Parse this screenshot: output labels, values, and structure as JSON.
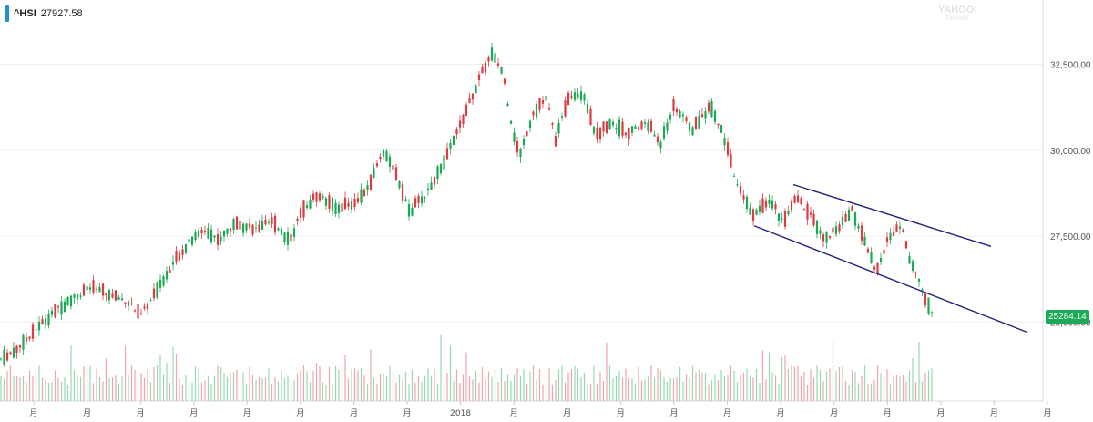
{
  "ticker": {
    "symbol": "^HSI",
    "value": "27927.58",
    "accent": "#1f8fd6"
  },
  "watermark": {
    "brand": "YAHOO!",
    "sub": "FINANCE"
  },
  "price_tag": {
    "value": "25284.14",
    "color": "#1aaa55"
  },
  "colors": {
    "up": "#1aaa55",
    "down": "#e0393e",
    "trendline": "#22237a",
    "grid": "#efefef"
  },
  "chart_data": {
    "type": "candlestick",
    "y_ticks": [
      25000,
      27500,
      30000,
      32500
    ],
    "y_tick_labels": [
      "25,000.00",
      "27,500.00",
      "30,000.00",
      "32,500.00"
    ],
    "ylim": [
      22700,
      34000
    ],
    "x_labels": [
      "月",
      "月",
      "月",
      "月",
      "月",
      "月",
      "月",
      "月",
      "2018",
      "月",
      "月",
      "月",
      "月",
      "月",
      "月",
      "月",
      "月",
      "月",
      "月",
      "月"
    ],
    "grid": true,
    "close_path": [
      [
        0,
        23900
      ],
      [
        18,
        24200
      ],
      [
        40,
        24800
      ],
      [
        60,
        25300
      ],
      [
        80,
        25700
      ],
      [
        100,
        26000
      ],
      [
        120,
        25800
      ],
      [
        140,
        25600
      ],
      [
        155,
        25200
      ],
      [
        170,
        25800
      ],
      [
        190,
        26700
      ],
      [
        210,
        27400
      ],
      [
        225,
        27700
      ],
      [
        240,
        27400
      ],
      [
        260,
        27900
      ],
      [
        280,
        27700
      ],
      [
        300,
        27900
      ],
      [
        318,
        27400
      ],
      [
        335,
        28400
      ],
      [
        350,
        28700
      ],
      [
        370,
        28300
      ],
      [
        390,
        28500
      ],
      [
        405,
        28900
      ],
      [
        420,
        30000
      ],
      [
        435,
        29300
      ],
      [
        450,
        28200
      ],
      [
        470,
        28800
      ],
      [
        490,
        29800
      ],
      [
        510,
        31000
      ],
      [
        525,
        32000
      ],
      [
        540,
        32800
      ],
      [
        552,
        32300
      ],
      [
        560,
        31000
      ],
      [
        570,
        29800
      ],
      [
        585,
        31100
      ],
      [
        600,
        31500
      ],
      [
        610,
        30300
      ],
      [
        625,
        31600
      ],
      [
        640,
        31700
      ],
      [
        655,
        30400
      ],
      [
        670,
        30800
      ],
      [
        690,
        30500
      ],
      [
        710,
        30800
      ],
      [
        725,
        30200
      ],
      [
        740,
        31300
      ],
      [
        760,
        30600
      ],
      [
        780,
        31300
      ],
      [
        795,
        30400
      ],
      [
        810,
        28900
      ],
      [
        828,
        28100
      ],
      [
        845,
        28600
      ],
      [
        860,
        27900
      ],
      [
        875,
        28600
      ],
      [
        890,
        28100
      ],
      [
        905,
        27400
      ],
      [
        920,
        27700
      ],
      [
        935,
        28300
      ],
      [
        950,
        27300
      ],
      [
        962,
        26500
      ],
      [
        975,
        27400
      ],
      [
        990,
        27900
      ],
      [
        1000,
        26700
      ],
      [
        1010,
        26200
      ],
      [
        1018,
        25500
      ],
      [
        1025,
        25300
      ]
    ],
    "trendlines": [
      {
        "name": "upper",
        "from": [
          871,
          29000
        ],
        "to": [
          1088,
          27200
        ]
      },
      {
        "name": "lower",
        "from": [
          828,
          27800
        ],
        "to": [
          1128,
          24700
        ]
      }
    ]
  }
}
